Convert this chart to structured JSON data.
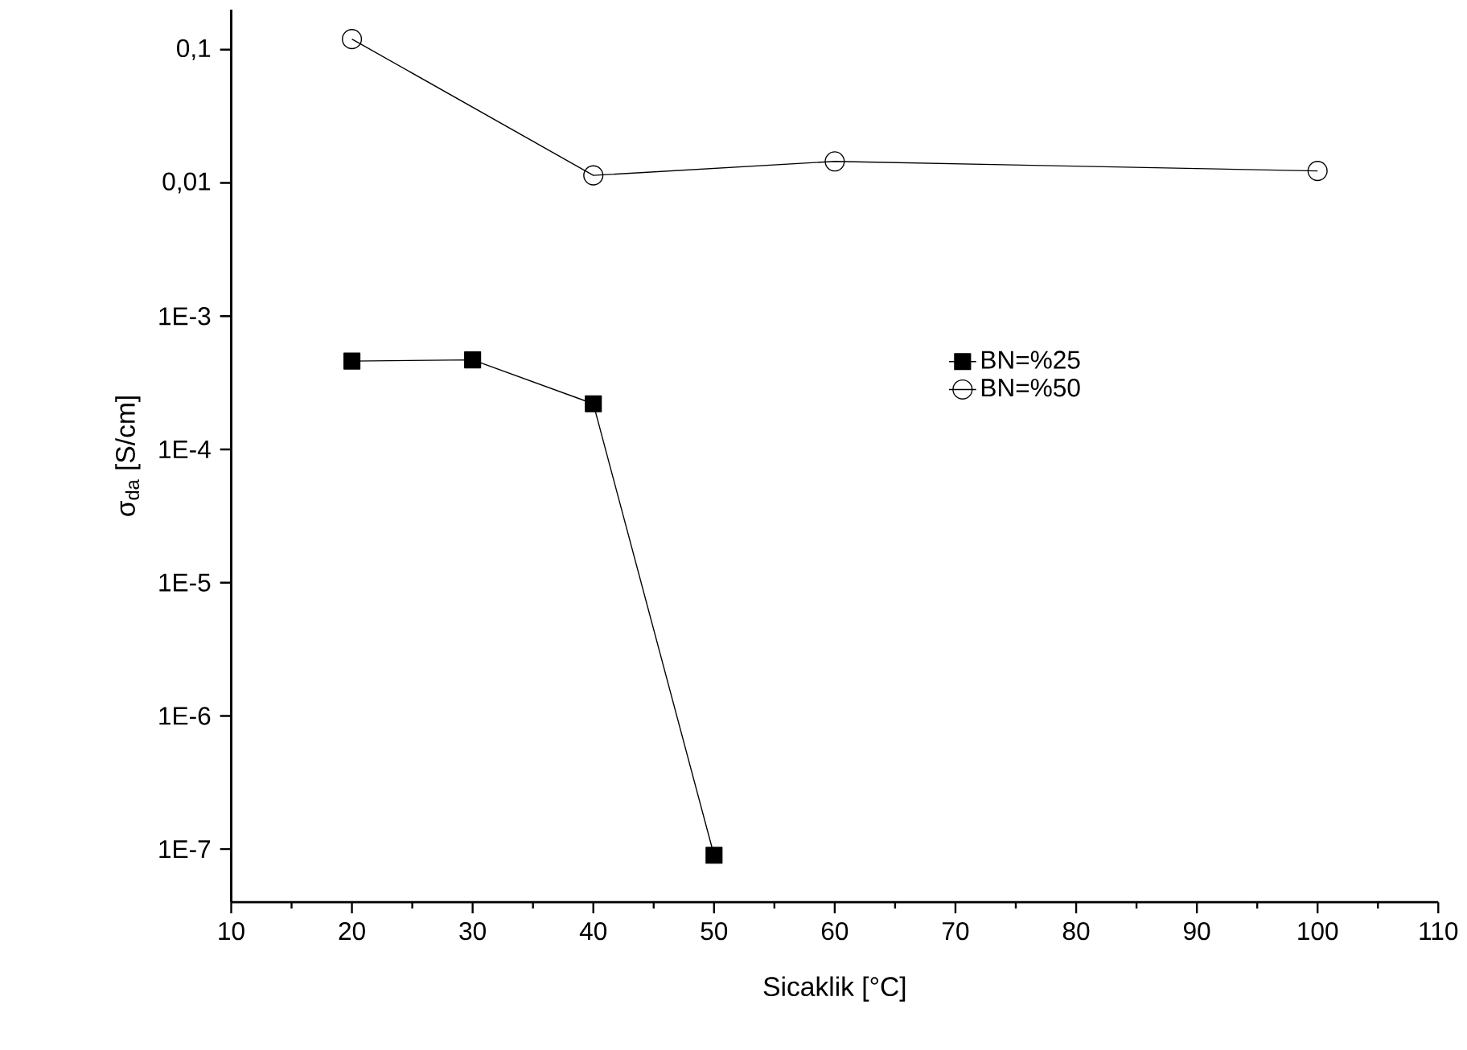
{
  "chart_data": {
    "type": "line",
    "xlabel": "Sicaklik [°C]",
    "ylabel": "σ$_{da}$ [S/cm]",
    "log": "y",
    "legend": "right",
    "xlim": [
      10,
      110
    ],
    "ylim": [
      4e-08,
      0.2
    ],
    "xticks": [
      10,
      20,
      30,
      40,
      50,
      60,
      70,
      80,
      90,
      100,
      110
    ],
    "yticks": [
      {
        "value": 0.1,
        "label": "0,1"
      },
      {
        "value": 0.01,
        "label": "0,01"
      },
      {
        "value": 0.001,
        "label": "1E-3"
      },
      {
        "value": 0.0001,
        "label": "1E-4"
      },
      {
        "value": 1e-05,
        "label": "1E-5"
      },
      {
        "value": 1e-06,
        "label": "1E-6"
      },
      {
        "value": 1e-07,
        "label": "1E-7"
      }
    ],
    "series": [
      {
        "name": "BN=%25",
        "color": "#000000",
        "marker": "square",
        "x": [
          20,
          30,
          40,
          50
        ],
        "values": [
          0.00046,
          0.00047,
          0.00022,
          9e-08
        ]
      },
      {
        "name": "BN=%50",
        "color": "#000000",
        "marker": "circle",
        "x": [
          20,
          40,
          60,
          100
        ],
        "values": [
          0.12,
          0.0114,
          0.0145,
          0.0123
        ]
      }
    ]
  }
}
